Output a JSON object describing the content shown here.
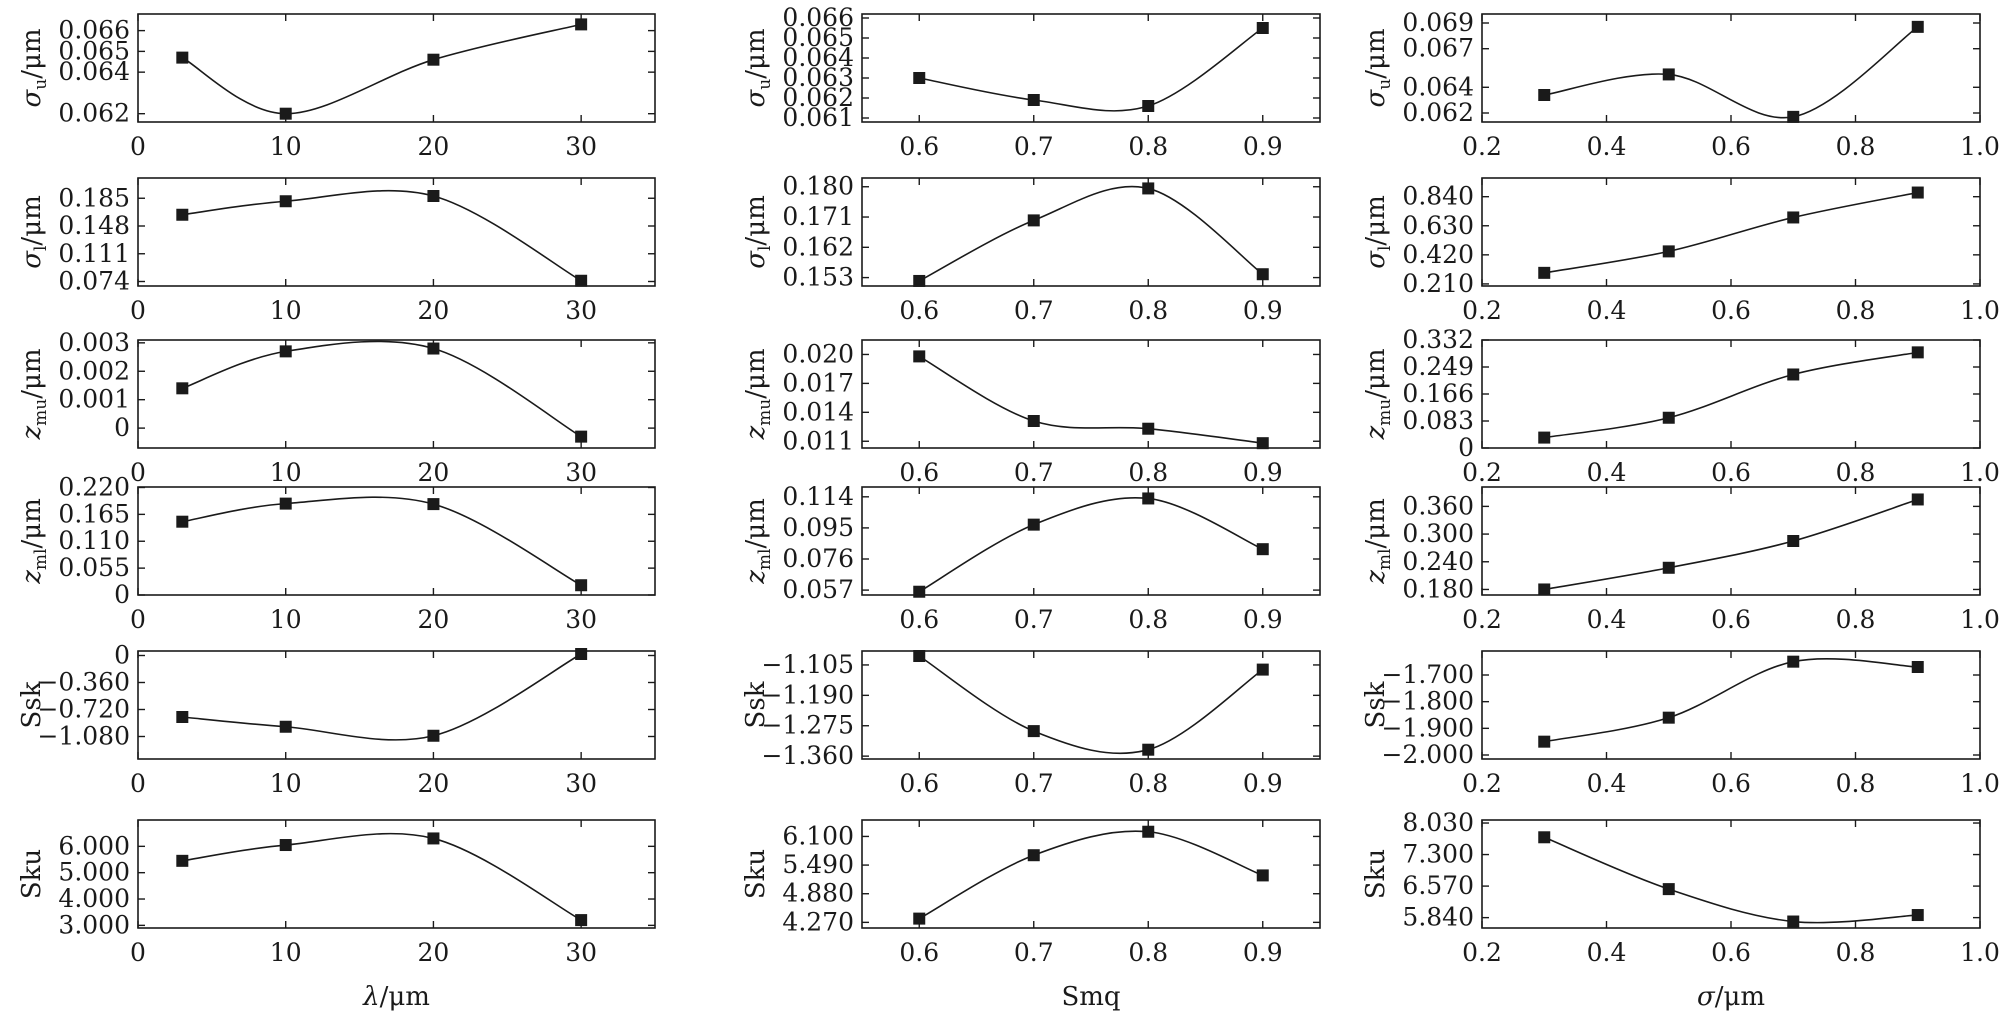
{
  "chart_data": [
    {
      "type": "line",
      "row": 0,
      "col": 0,
      "ylabel": {
        "main": "σ",
        "sub": "u",
        "unit": "/μm"
      },
      "x": [
        3,
        10,
        20,
        30
      ],
      "values": [
        0.0647,
        0.062,
        0.0646,
        0.0663
      ],
      "xlim": [
        0,
        35
      ],
      "xticks": [
        "0",
        "10",
        "20",
        "30"
      ],
      "xtick_values": [
        0,
        10,
        20,
        30
      ],
      "ylim": [
        0.0616,
        0.0668
      ],
      "yticks": [
        "0.062",
        "0.064",
        "0.065",
        "0.066"
      ],
      "ytick_values": [
        0.062,
        0.064,
        0.065,
        0.066
      ]
    },
    {
      "type": "line",
      "row": 0,
      "col": 1,
      "ylabel": {
        "main": "σ",
        "sub": "u",
        "unit": "/μm"
      },
      "x": [
        0.6,
        0.7,
        0.8,
        0.9
      ],
      "values": [
        0.063,
        0.0619,
        0.0616,
        0.0655
      ],
      "xlim": [
        0.55,
        0.95
      ],
      "xticks": [
        "0.6",
        "0.7",
        "0.8",
        "0.9"
      ],
      "xtick_values": [
        0.6,
        0.7,
        0.8,
        0.9
      ],
      "ylim": [
        0.0608,
        0.0662
      ],
      "yticks": [
        "0.061",
        "0.062",
        "0.063",
        "0.064",
        "0.065",
        "0.066"
      ],
      "ytick_values": [
        0.061,
        0.062,
        0.063,
        0.064,
        0.065,
        0.066
      ]
    },
    {
      "type": "line",
      "row": 0,
      "col": 2,
      "ylabel": {
        "main": "σ",
        "sub": "u",
        "unit": "/μm"
      },
      "x": [
        0.3,
        0.5,
        0.7,
        0.9
      ],
      "values": [
        0.0634,
        0.065,
        0.0617,
        0.0687
      ],
      "xlim": [
        0.2,
        1.0
      ],
      "xticks": [
        "0.2",
        "0.4",
        "0.6",
        "0.8",
        "1.0"
      ],
      "xtick_values": [
        0.2,
        0.4,
        0.6,
        0.8,
        1.0
      ],
      "ylim": [
        0.0613,
        0.0697
      ],
      "yticks": [
        "0.062",
        "0.064",
        "0.067",
        "0.069"
      ],
      "ytick_values": [
        0.062,
        0.064,
        0.067,
        0.069
      ]
    },
    {
      "type": "line",
      "row": 1,
      "col": 0,
      "ylabel": {
        "main": "σ",
        "sub": "l",
        "unit": "/μm"
      },
      "x": [
        3,
        10,
        20,
        30
      ],
      "values": [
        0.163,
        0.181,
        0.188,
        0.075
      ],
      "xlim": [
        0,
        35
      ],
      "xticks": [
        "0",
        "10",
        "20",
        "30"
      ],
      "xtick_values": [
        0,
        10,
        20,
        30
      ],
      "ylim": [
        0.068,
        0.212
      ],
      "yticks": [
        "0.074",
        "0.111",
        "0.148",
        "0.185"
      ],
      "ytick_values": [
        0.074,
        0.111,
        0.148,
        0.185
      ]
    },
    {
      "type": "line",
      "row": 1,
      "col": 1,
      "ylabel": {
        "main": "σ",
        "sub": "l",
        "unit": "/μm"
      },
      "x": [
        0.6,
        0.7,
        0.8,
        0.9
      ],
      "values": [
        0.152,
        0.17,
        0.1795,
        0.154
      ],
      "xlim": [
        0.55,
        0.95
      ],
      "xticks": [
        "0.6",
        "0.7",
        "0.8",
        "0.9"
      ],
      "xtick_values": [
        0.6,
        0.7,
        0.8,
        0.9
      ],
      "ylim": [
        0.1505,
        0.1826
      ],
      "yticks": [
        "0.153",
        "0.162",
        "0.171",
        "0.180"
      ],
      "ytick_values": [
        0.153,
        0.162,
        0.171,
        0.18
      ]
    },
    {
      "type": "line",
      "row": 1,
      "col": 2,
      "ylabel": {
        "main": "σ",
        "sub": "l",
        "unit": "/μm"
      },
      "x": [
        0.3,
        0.5,
        0.7,
        0.9
      ],
      "values": [
        0.29,
        0.445,
        0.69,
        0.87
      ],
      "xlim": [
        0.2,
        1.0
      ],
      "xticks": [
        "0.2",
        "0.4",
        "0.6",
        "0.8",
        "1.0"
      ],
      "xtick_values": [
        0.2,
        0.4,
        0.6,
        0.8,
        1.0
      ],
      "ylim": [
        0.195,
        0.975
      ],
      "yticks": [
        "0.210",
        "0.420",
        "0.630",
        "0.840"
      ],
      "ytick_values": [
        0.21,
        0.42,
        0.63,
        0.84
      ]
    },
    {
      "type": "line",
      "row": 2,
      "col": 0,
      "ylabel": {
        "main": "z",
        "sub": "mu",
        "unit": "/μm"
      },
      "x": [
        3,
        10,
        20,
        30
      ],
      "values": [
        0.0014,
        0.0027,
        0.0028,
        -0.0003
      ],
      "xlim": [
        0,
        35
      ],
      "xticks": [
        "0",
        "10",
        "20",
        "30"
      ],
      "xtick_values": [
        0,
        10,
        20,
        30
      ],
      "ylim": [
        -0.0007,
        0.0031
      ],
      "yticks": [
        "0",
        "0.001",
        "0.002",
        "0.003"
      ],
      "ytick_values": [
        0,
        0.001,
        0.002,
        0.003
      ]
    },
    {
      "type": "line",
      "row": 2,
      "col": 1,
      "ylabel": {
        "main": "z",
        "sub": "mu",
        "unit": "/μm"
      },
      "x": [
        0.6,
        0.7,
        0.8,
        0.9
      ],
      "values": [
        0.0198,
        0.0131,
        0.0123,
        0.0108
      ],
      "xlim": [
        0.55,
        0.95
      ],
      "xticks": [
        "0.6",
        "0.7",
        "0.8",
        "0.9"
      ],
      "xtick_values": [
        0.6,
        0.7,
        0.8,
        0.9
      ],
      "ylim": [
        0.0103,
        0.0215
      ],
      "yticks": [
        "0.011",
        "0.014",
        "0.017",
        "0.020"
      ],
      "ytick_values": [
        0.011,
        0.014,
        0.017,
        0.02
      ]
    },
    {
      "type": "line",
      "row": 2,
      "col": 2,
      "ylabel": {
        "main": "z",
        "sub": "mu",
        "unit": "/μm"
      },
      "x": [
        0.3,
        0.5,
        0.7,
        0.9
      ],
      "values": [
        0.032,
        0.093,
        0.226,
        0.294
      ],
      "xlim": [
        0.2,
        1.0
      ],
      "xticks": [
        "0.2",
        "0.4",
        "0.6",
        "0.8",
        "1.0"
      ],
      "xtick_values": [
        0.2,
        0.4,
        0.6,
        0.8,
        1.0
      ],
      "ylim": [
        0,
        0.332
      ],
      "yticks": [
        "0",
        "0.083",
        "0.166",
        "0.249",
        "0.332"
      ],
      "ytick_values": [
        0,
        0.083,
        0.166,
        0.249,
        0.332
      ]
    },
    {
      "type": "line",
      "row": 3,
      "col": 0,
      "ylabel": {
        "main": "z",
        "sub": "ml",
        "unit": "/μm"
      },
      "x": [
        3,
        10,
        20,
        30
      ],
      "values": [
        0.15,
        0.187,
        0.186,
        0.02
      ],
      "xlim": [
        0,
        35
      ],
      "xticks": [
        "0",
        "10",
        "20",
        "30"
      ],
      "xtick_values": [
        0,
        10,
        20,
        30
      ],
      "ylim": [
        0,
        0.221
      ],
      "yticks": [
        "0",
        "0.055",
        "0.110",
        "0.165",
        "0.220"
      ],
      "ytick_values": [
        0,
        0.055,
        0.11,
        0.165,
        0.22
      ]
    },
    {
      "type": "line",
      "row": 3,
      "col": 1,
      "ylabel": {
        "main": "z",
        "sub": "ml",
        "unit": "/μm"
      },
      "x": [
        0.6,
        0.7,
        0.8,
        0.9
      ],
      "values": [
        0.056,
        0.097,
        0.113,
        0.082
      ],
      "xlim": [
        0.55,
        0.95
      ],
      "xticks": [
        "0.6",
        "0.7",
        "0.8",
        "0.9"
      ],
      "xtick_values": [
        0.6,
        0.7,
        0.8,
        0.9
      ],
      "ylim": [
        0.054,
        0.12
      ],
      "yticks": [
        "0.057",
        "0.076",
        "0.095",
        "0.114"
      ],
      "ytick_values": [
        0.057,
        0.076,
        0.095,
        0.114
      ]
    },
    {
      "type": "line",
      "row": 3,
      "col": 2,
      "ylabel": {
        "main": "z",
        "sub": "ml",
        "unit": "/μm"
      },
      "x": [
        0.3,
        0.5,
        0.7,
        0.9
      ],
      "values": [
        0.18,
        0.227,
        0.285,
        0.375
      ],
      "xlim": [
        0.2,
        1.0
      ],
      "xticks": [
        "0.2",
        "0.4",
        "0.6",
        "0.8",
        "1.0"
      ],
      "xtick_values": [
        0.2,
        0.4,
        0.6,
        0.8,
        1.0
      ],
      "ylim": [
        0.168,
        0.402
      ],
      "yticks": [
        "0.180",
        "0.240",
        "0.300",
        "0.360"
      ],
      "ytick_values": [
        0.18,
        0.24,
        0.3,
        0.36
      ]
    },
    {
      "type": "line",
      "row": 4,
      "col": 0,
      "ylabel": {
        "main": "Ssk",
        "sub": "",
        "unit": ""
      },
      "x": [
        3,
        10,
        20,
        30
      ],
      "values": [
        -0.82,
        -0.95,
        -1.07,
        0.02
      ],
      "xlim": [
        0,
        35
      ],
      "xticks": [
        "0",
        "10",
        "20",
        "30"
      ],
      "xtick_values": [
        0,
        10,
        20,
        30
      ],
      "ylim": [
        -1.38,
        0.06
      ],
      "yticks": [
        "−1.080",
        "−0.720",
        "−0.360",
        "0"
      ],
      "ytick_values": [
        -1.08,
        -0.72,
        -0.36,
        0
      ]
    },
    {
      "type": "line",
      "row": 4,
      "col": 1,
      "ylabel": {
        "main": "Ssk",
        "sub": "",
        "unit": ""
      },
      "x": [
        0.6,
        0.7,
        0.8,
        0.9
      ],
      "values": [
        -1.08,
        -1.29,
        -1.342,
        -1.118
      ],
      "xlim": [
        0.55,
        0.95
      ],
      "xticks": [
        "0.6",
        "0.7",
        "0.8",
        "0.9"
      ],
      "xtick_values": [
        0.6,
        0.7,
        0.8,
        0.9
      ],
      "ylim": [
        -1.368,
        -1.066
      ],
      "yticks": [
        "−1.360",
        "−1.275",
        "−1.190",
        "−1.105"
      ],
      "ytick_values": [
        -1.36,
        -1.275,
        -1.19,
        -1.105
      ]
    },
    {
      "type": "line",
      "row": 4,
      "col": 2,
      "ylabel": {
        "main": "Ssk",
        "sub": "",
        "unit": ""
      },
      "x": [
        0.3,
        0.5,
        0.7,
        0.9
      ],
      "values": [
        -1.95,
        -1.86,
        -1.65,
        -1.67
      ],
      "xlim": [
        0.2,
        1.0
      ],
      "xticks": [
        "0.2",
        "0.4",
        "0.6",
        "0.8",
        "1.0"
      ],
      "xtick_values": [
        0.2,
        0.4,
        0.6,
        0.8,
        1.0
      ],
      "ylim": [
        -2.015,
        -1.61
      ],
      "yticks": [
        "−2.000",
        "−1.900",
        "−1.800",
        "−1.700"
      ],
      "ytick_values": [
        -2.0,
        -1.9,
        -1.8,
        -1.7
      ]
    },
    {
      "type": "line",
      "row": 5,
      "col": 0,
      "ylabel": {
        "main": "Sku",
        "sub": "",
        "unit": ""
      },
      "x": [
        3,
        10,
        20,
        30
      ],
      "values": [
        5.45,
        6.05,
        6.3,
        3.2
      ],
      "xlim": [
        0,
        35
      ],
      "xticks": [
        "0",
        "10",
        "20",
        "30"
      ],
      "xtick_values": [
        0,
        10,
        20,
        30
      ],
      "ylim": [
        2.9,
        7.0
      ],
      "yticks": [
        "3.000",
        "4.000",
        "5.000",
        "6.000"
      ],
      "ytick_values": [
        3,
        4,
        5,
        6
      ]
    },
    {
      "type": "line",
      "row": 5,
      "col": 1,
      "ylabel": {
        "main": "Sku",
        "sub": "",
        "unit": ""
      },
      "x": [
        0.6,
        0.7,
        0.8,
        0.9
      ],
      "values": [
        4.35,
        5.7,
        6.2,
        5.27
      ],
      "xlim": [
        0.55,
        0.95
      ],
      "xticks": [
        "0.6",
        "0.7",
        "0.8",
        "0.9"
      ],
      "xtick_values": [
        0.6,
        0.7,
        0.8,
        0.9
      ],
      "ylim": [
        4.15,
        6.45
      ],
      "yticks": [
        "4.270",
        "4.880",
        "5.490",
        "6.100"
      ],
      "ytick_values": [
        4.27,
        4.88,
        5.49,
        6.1
      ]
    },
    {
      "type": "line",
      "row": 5,
      "col": 2,
      "ylabel": {
        "main": "Sku",
        "sub": "",
        "unit": ""
      },
      "x": [
        0.3,
        0.5,
        0.7,
        0.9
      ],
      "values": [
        7.7,
        6.5,
        5.75,
        5.9
      ],
      "xlim": [
        0.2,
        1.0
      ],
      "xticks": [
        "0.2",
        "0.4",
        "0.6",
        "0.8",
        "1.0"
      ],
      "xtick_values": [
        0.2,
        0.4,
        0.6,
        0.8,
        1.0
      ],
      "ylim": [
        5.6,
        8.1
      ],
      "yticks": [
        "5.840",
        "6.570",
        "7.300",
        "8.030"
      ],
      "ytick_values": [
        5.84,
        6.57,
        7.3,
        8.03
      ]
    }
  ],
  "xlabels": [
    {
      "col": 0,
      "main": "λ",
      "unit": "/μm"
    },
    {
      "col": 1,
      "main": "Smq",
      "unit": ""
    },
    {
      "col": 2,
      "main": "σ",
      "unit": "/μm"
    }
  ]
}
